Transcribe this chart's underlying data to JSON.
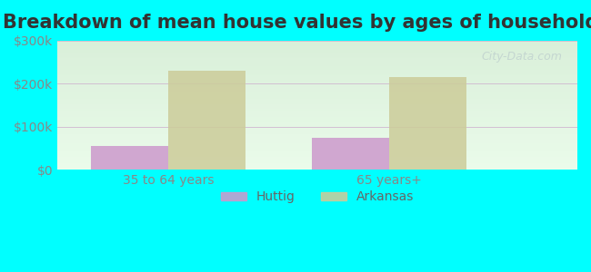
{
  "title": "Breakdown of mean house values by ages of householders",
  "categories": [
    "35 to 64 years",
    "65 years+"
  ],
  "series": {
    "Huttig": [
      55000,
      75000
    ],
    "Arkansas": [
      230000,
      215000
    ]
  },
  "colors": {
    "Huttig": "#cc99cc",
    "Arkansas": "#cccc99"
  },
  "ylim": [
    0,
    300000
  ],
  "yticks": [
    0,
    100000,
    200000,
    300000
  ],
  "ytick_labels": [
    "$0",
    "$100k",
    "$200k",
    "$300k"
  ],
  "background_color": "#00ffff",
  "plot_bg_gradient_top": "#e8f5e8",
  "plot_bg_gradient_bottom": "#ccffcc",
  "bar_width": 0.35,
  "group_positions": [
    1,
    2
  ],
  "legend_labels": [
    "Huttig",
    "Arkansas"
  ],
  "watermark": "City-Data.com",
  "title_fontsize": 15,
  "tick_label_fontsize": 10,
  "legend_fontsize": 10
}
